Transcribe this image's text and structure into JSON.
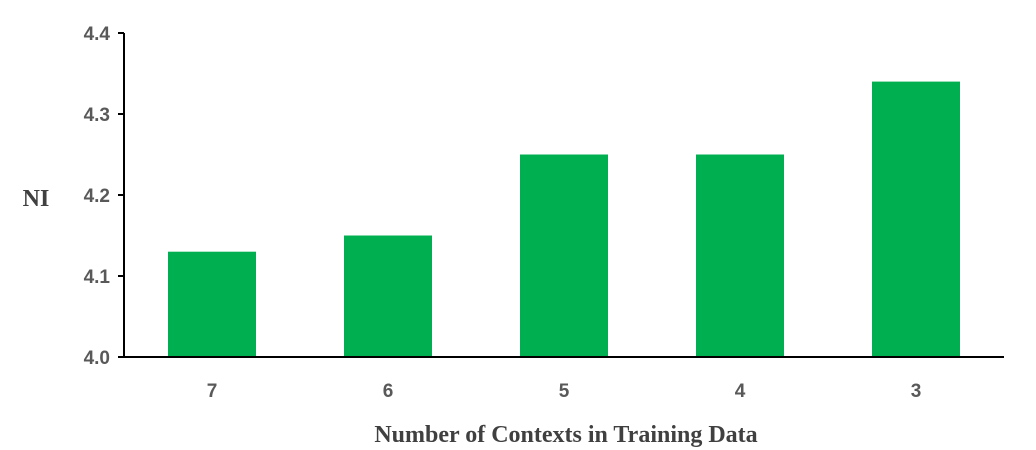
{
  "chart_data": {
    "type": "bar",
    "title": "",
    "xlabel": "Number of  Contexts in Training Data",
    "ylabel": "NI",
    "categories": [
      "7",
      "6",
      "5",
      "4",
      "3"
    ],
    "values": [
      4.13,
      4.15,
      4.25,
      4.25,
      4.34
    ],
    "ylim": [
      4.0,
      4.4
    ],
    "yticks": [
      "4.0",
      "4.1",
      "4.2",
      "4.3",
      "4.4"
    ],
    "grid": false,
    "legend": "none",
    "bar_color": "#00B050",
    "axis_color": "#000000"
  }
}
